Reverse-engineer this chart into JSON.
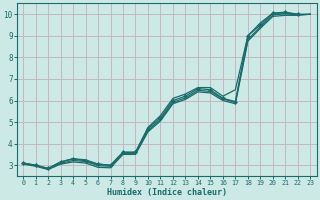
{
  "xlabel": "Humidex (Indice chaleur)",
  "bg_color": "#cce9e6",
  "line_color": "#1a6b6b",
  "grid_color": "#c4b8c0",
  "xlim": [
    -0.5,
    23.5
  ],
  "ylim": [
    2.5,
    10.5
  ],
  "yticks": [
    3,
    4,
    5,
    6,
    7,
    8,
    9,
    10
  ],
  "xticks": [
    0,
    1,
    2,
    3,
    4,
    5,
    6,
    7,
    8,
    9,
    10,
    11,
    12,
    13,
    14,
    15,
    16,
    17,
    18,
    19,
    20,
    21,
    22,
    23
  ],
  "curve_with_markers_x": [
    0,
    1,
    2,
    3,
    4,
    5,
    6,
    7,
    8,
    9,
    10,
    11,
    12,
    13,
    14,
    15,
    16,
    17,
    18,
    19,
    20,
    21,
    22
  ],
  "curve_with_markers_y": [
    3.1,
    3.0,
    2.85,
    3.15,
    3.3,
    3.2,
    3.05,
    3.0,
    3.6,
    3.6,
    4.7,
    5.2,
    6.0,
    6.2,
    6.55,
    6.5,
    6.1,
    5.95,
    9.0,
    9.5,
    10.05,
    10.1,
    10.0
  ],
  "line_upper_x": [
    0,
    1,
    2,
    3,
    4,
    5,
    6,
    7,
    8,
    9,
    10,
    11,
    12,
    13,
    14,
    15,
    16,
    17,
    18,
    19,
    20,
    21,
    22,
    23
  ],
  "line_upper_y": [
    3.1,
    3.0,
    2.85,
    3.15,
    3.3,
    3.25,
    3.05,
    3.0,
    3.6,
    3.6,
    4.75,
    5.3,
    6.1,
    6.3,
    6.6,
    6.6,
    6.2,
    6.5,
    9.0,
    9.6,
    10.05,
    10.05,
    10.0,
    10.0
  ],
  "line_mid1_x": [
    0,
    1,
    2,
    3,
    4,
    5,
    6,
    7,
    8,
    9,
    10,
    11,
    12,
    13,
    14,
    15,
    16,
    17,
    18,
    19,
    20,
    21,
    22,
    23
  ],
  "line_mid1_y": [
    3.08,
    2.98,
    2.83,
    3.08,
    3.22,
    3.17,
    2.98,
    2.95,
    3.55,
    3.55,
    4.62,
    5.12,
    5.92,
    6.12,
    6.47,
    6.42,
    6.07,
    5.92,
    8.82,
    9.42,
    9.97,
    10.02,
    9.98,
    10.0
  ],
  "line_low_x": [
    0,
    1,
    2,
    3,
    4,
    5,
    6,
    7,
    8,
    9,
    10,
    11,
    12,
    13,
    14,
    15,
    16,
    17,
    18,
    19,
    20,
    21,
    22,
    23
  ],
  "line_low_y": [
    3.05,
    2.95,
    2.8,
    3.05,
    3.15,
    3.1,
    2.9,
    2.88,
    3.5,
    3.5,
    4.55,
    5.05,
    5.85,
    6.05,
    6.4,
    6.35,
    6.0,
    5.85,
    8.75,
    9.35,
    9.9,
    9.95,
    9.95,
    10.0
  ]
}
